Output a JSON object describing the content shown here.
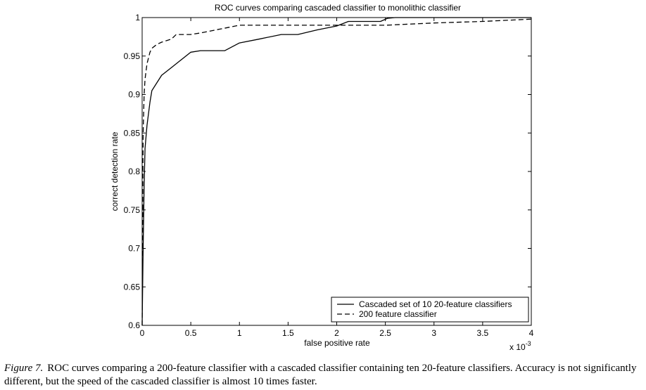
{
  "chart_data": {
    "type": "line",
    "title": "ROC curves comparing cascaded classifier to monolithic classifier",
    "xlabel": "false positive rate",
    "ylabel": "correct detection rate",
    "x_multiplier": "x 10",
    "x_exponent": "-3",
    "xlim": [
      0,
      4
    ],
    "ylim": [
      0.6,
      1
    ],
    "xticks": [
      "0",
      "0.5",
      "1",
      "1.5",
      "2",
      "2.5",
      "3",
      "3.5",
      "4"
    ],
    "yticks": [
      "0.6",
      "0.65",
      "0.7",
      "0.75",
      "0.8",
      "0.85",
      "0.9",
      "0.95",
      "1"
    ],
    "legend_position": "bottom-right",
    "grid": false,
    "series": [
      {
        "name": "Cascaded set of 10 20-feature classifiers",
        "line_style": "solid",
        "x": [
          0.0,
          0.01,
          0.02,
          0.03,
          0.05,
          0.08,
          0.1,
          0.15,
          0.2,
          0.3,
          0.4,
          0.5,
          0.6,
          0.85,
          1.0,
          1.2,
          1.43,
          1.6,
          1.8,
          2.0,
          2.12,
          2.3,
          2.45,
          2.52,
          2.6,
          3.0,
          4.0
        ],
        "y": [
          0.6,
          0.7,
          0.78,
          0.83,
          0.86,
          0.89,
          0.905,
          0.915,
          0.925,
          0.935,
          0.945,
          0.955,
          0.957,
          0.957,
          0.967,
          0.972,
          0.978,
          0.978,
          0.984,
          0.989,
          0.995,
          0.995,
          0.995,
          0.999,
          1.0,
          1.0,
          1.0
        ]
      },
      {
        "name": "200 feature classifier",
        "line_style": "dashed",
        "x": [
          0.0,
          0.01,
          0.02,
          0.03,
          0.05,
          0.08,
          0.1,
          0.15,
          0.2,
          0.3,
          0.35,
          0.5,
          0.6,
          0.8,
          1.0,
          1.3,
          1.5,
          1.8,
          2.0,
          2.5,
          3.0,
          3.5,
          4.0
        ],
        "y": [
          0.6,
          0.85,
          0.9,
          0.92,
          0.94,
          0.955,
          0.96,
          0.965,
          0.968,
          0.972,
          0.978,
          0.978,
          0.98,
          0.985,
          0.99,
          0.99,
          0.99,
          0.99,
          0.99,
          0.99,
          0.993,
          0.995,
          0.998
        ]
      }
    ]
  },
  "caption": {
    "lead": "Figure 7.",
    "text": "ROC curves comparing a 200-feature classifier with a cascaded classifier containing ten 20-feature classifiers. Accuracy is not significantly different, but the speed of the cascaded classifier is almost 10 times faster."
  }
}
